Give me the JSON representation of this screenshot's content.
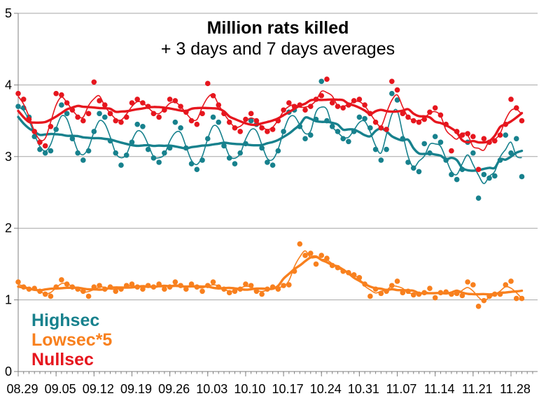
{
  "chart_data": {
    "type": "scatter",
    "title": "Million rats killed",
    "subtitle": "+ 3 days and 7 days averages",
    "grid": "horizontal",
    "legend_position": "bottom-left",
    "ylim": [
      0,
      5
    ],
    "y_ticks": [
      0,
      1,
      2,
      3,
      4,
      5
    ],
    "x_tick_labels": [
      "08.29",
      "09.05",
      "09.12",
      "09.19",
      "09.26",
      "10.03",
      "10.10",
      "10.17",
      "10.24",
      "10.31",
      "11.07",
      "11.14",
      "11.21",
      "11.28"
    ],
    "x_tick_day_indexes": [
      0,
      7,
      14,
      21,
      28,
      35,
      42,
      49,
      56,
      63,
      70,
      77,
      84,
      91
    ],
    "averages_days": [
      3,
      7
    ],
    "axis_color": "#808080",
    "grid_color": "#a6a6a6",
    "label_color": "#000000",
    "series": [
      {
        "name": "Highsec",
        "color": "#17818D",
        "values": [
          3.7,
          3.68,
          3.55,
          3.28,
          3.1,
          3.05,
          3.08,
          3.38,
          3.72,
          3.6,
          3.25,
          3.05,
          2.95,
          3.08,
          3.35,
          3.6,
          3.55,
          3.22,
          3.05,
          2.88,
          3.02,
          3.2,
          3.45,
          3.42,
          3.1,
          2.98,
          2.92,
          3.05,
          3.12,
          3.48,
          3.4,
          3.12,
          2.9,
          2.82,
          2.95,
          3.25,
          3.55,
          3.48,
          3.15,
          2.98,
          2.9,
          3.05,
          3.18,
          3.5,
          3.45,
          3.12,
          2.92,
          2.88,
          3.08,
          3.35,
          3.62,
          3.65,
          3.42,
          3.25,
          3.3,
          3.52,
          4.05,
          3.5,
          3.42,
          3.35,
          3.25,
          3.21,
          3.35,
          3.55,
          3.53,
          3.4,
          3.1,
          2.95,
          3.1,
          3.88,
          3.79,
          3.25,
          2.92,
          2.84,
          2.79,
          3.18,
          3.05,
          3.28,
          3.2,
          2.95,
          2.75,
          2.68,
          2.82,
          3.2,
          3.05,
          2.42,
          2.75,
          2.7,
          2.73,
          2.95,
          3.3,
          3.05,
          3.25,
          2.72
        ]
      },
      {
        "name": "Lowsec*5",
        "color": "#F8801E",
        "values": [
          1.25,
          1.18,
          1.15,
          1.16,
          1.12,
          1.08,
          1.05,
          1.18,
          1.28,
          1.22,
          1.18,
          1.15,
          1.12,
          1.05,
          1.18,
          1.2,
          1.15,
          1.18,
          1.12,
          1.15,
          1.2,
          1.22,
          1.18,
          1.15,
          1.2,
          1.18,
          1.22,
          1.15,
          1.18,
          1.25,
          1.2,
          1.15,
          1.22,
          1.18,
          1.12,
          1.2,
          1.25,
          1.18,
          1.15,
          1.1,
          1.12,
          1.15,
          1.22,
          1.2,
          1.12,
          1.08,
          1.15,
          1.18,
          1.15,
          1.2,
          1.21,
          1.4,
          1.78,
          1.62,
          1.65,
          1.5,
          1.62,
          1.58,
          1.48,
          1.45,
          1.4,
          1.38,
          1.35,
          1.31,
          1.22,
          1.05,
          1.15,
          1.09,
          1.12,
          1.2,
          1.26,
          1.1,
          1.12,
          1.07,
          1.08,
          1.1,
          1.16,
          1.03,
          1.1,
          1.11,
          1.08,
          1.09,
          1.06,
          1.25,
          1.21,
          0.91,
          0.99,
          1.05,
          1.08,
          1.08,
          1.21,
          1.26,
          1.02,
          1.02
        ]
      },
      {
        "name": "Nullsec",
        "color": "#E6161E",
        "values": [
          3.88,
          3.8,
          3.52,
          3.35,
          3.2,
          3.15,
          3.42,
          3.88,
          3.86,
          3.75,
          3.65,
          3.55,
          3.5,
          3.6,
          4.04,
          3.78,
          3.72,
          3.6,
          3.5,
          3.48,
          3.55,
          3.75,
          3.8,
          3.75,
          3.7,
          3.6,
          3.55,
          3.65,
          3.8,
          3.78,
          3.7,
          3.62,
          3.5,
          3.45,
          3.6,
          4.02,
          3.85,
          3.72,
          3.6,
          3.48,
          3.4,
          3.35,
          3.52,
          3.6,
          3.5,
          3.4,
          3.35,
          3.38,
          3.5,
          3.65,
          3.75,
          3.7,
          3.72,
          3.65,
          3.7,
          3.8,
          3.85,
          4.08,
          3.75,
          3.7,
          3.68,
          3.72,
          3.78,
          3.8,
          3.72,
          3.6,
          3.48,
          3.4,
          3.38,
          4.05,
          3.93,
          3.6,
          3.55,
          3.5,
          3.48,
          3.52,
          3.62,
          3.68,
          3.58,
          3.45,
          3.08,
          3.35,
          3.3,
          3.32,
          3.28,
          2.82,
          3.25,
          3.2,
          3.22,
          3.3,
          3.45,
          3.8,
          3.68,
          3.5
        ]
      }
    ]
  }
}
